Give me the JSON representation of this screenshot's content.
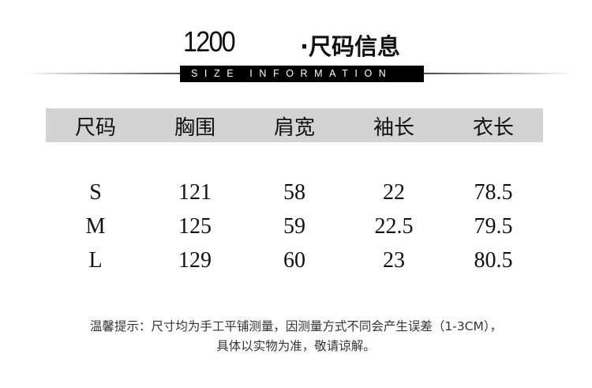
{
  "title": {
    "number": "1200",
    "label": "·尺码信息",
    "subtitle": "SIZE INFORMATION"
  },
  "table": {
    "headers": [
      "尺码",
      "胸围",
      "肩宽",
      "袖长",
      "衣长"
    ],
    "rows": [
      [
        "S",
        "121",
        "58",
        "22",
        "78.5"
      ],
      [
        "M",
        "125",
        "59",
        "22.5",
        "79.5"
      ],
      [
        "L",
        "129",
        "60",
        "23",
        "80.5"
      ]
    ]
  },
  "note": {
    "line1": "温馨提示：尺寸均为手工平铺测量，因测量方式不同会产生误差（1-3CM），",
    "line2": "具体以实物为准，敬请谅解。"
  },
  "colors": {
    "header_bg": "#d3d3d3",
    "bar_bg": "#000000"
  }
}
